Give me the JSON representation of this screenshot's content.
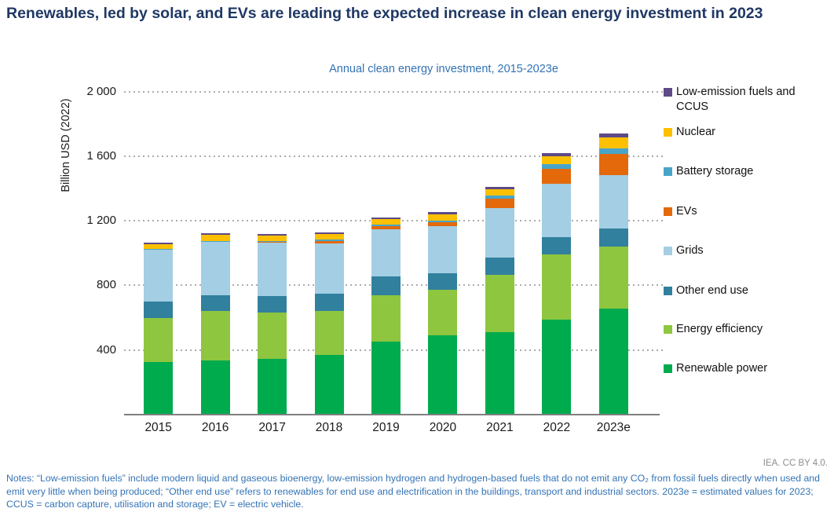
{
  "page": {
    "title": "Renewables, led by solar, and EVs are leading the expected increase in clean energy investment in 2023",
    "credit": "IEA. CC BY 4.0.",
    "notes": "Notes: “Low-emission fuels” include modern liquid and gaseous bioenergy, low-emission hydrogen and hydrogen-based fuels that do not emit any CO₂ from fossil fuels directly when used and emit very little when being produced; “Other end use” refers to renewables for end use and electrification in the buildings, transport and industrial sectors. 2023e = estimated values for 2023; CCUS = carbon capture, utilisation and storage; EV = electric vehicle."
  },
  "chart_data": {
    "type": "bar",
    "stacked": true,
    "title": "Annual clean energy investment, 2015-2023e",
    "xlabel": "",
    "ylabel": "Billion USD (2022)",
    "ylim": [
      0,
      2000
    ],
    "grid": "horizontal dotted",
    "legend_position": "right",
    "legend_order_top_to_bottom": [
      "Low-emission fuels and CCUS",
      "Nuclear",
      "Battery storage",
      "EVs",
      "Grids",
      "Other end use",
      "Energy efficiency",
      "Renewable power"
    ],
    "categories": [
      "2015",
      "2016",
      "2017",
      "2018",
      "2019",
      "2020",
      "2021",
      "2022",
      "2023e"
    ],
    "yticks": [
      {
        "value": 400,
        "label": "400"
      },
      {
        "value": 800,
        "label": "800"
      },
      {
        "value": 1200,
        "label": "1 200"
      },
      {
        "value": 1600,
        "label": "1 600"
      },
      {
        "value": 2000,
        "label": "2 000"
      }
    ],
    "series": [
      {
        "name": "Renewable power",
        "slug": "renewable-power",
        "color": "#00ab4e",
        "values": [
          325,
          335,
          345,
          370,
          450,
          490,
          510,
          590,
          655
        ]
      },
      {
        "name": "Energy efficiency",
        "slug": "energy-efficiency",
        "color": "#8ec63f",
        "values": [
          275,
          305,
          285,
          270,
          290,
          285,
          355,
          400,
          385
        ]
      },
      {
        "name": "Other end use",
        "slug": "other-end-use",
        "color": "#31809e",
        "values": [
          100,
          100,
          105,
          110,
          115,
          100,
          105,
          110,
          110
        ]
      },
      {
        "name": "Grids",
        "slug": "grids",
        "color": "#a4cee4",
        "values": [
          325,
          330,
          330,
          310,
          290,
          290,
          310,
          330,
          335
        ]
      },
      {
        "name": "EVs",
        "slug": "evs",
        "color": "#e3690b",
        "values": [
          2,
          3,
          8,
          15,
          20,
          25,
          55,
          90,
          130
        ]
      },
      {
        "name": "Battery storage",
        "slug": "battery-storage",
        "color": "#48a5c9",
        "values": [
          1,
          2,
          3,
          10,
          10,
          12,
          20,
          30,
          35
        ]
      },
      {
        "name": "Nuclear",
        "slug": "nuclear",
        "color": "#fdc000",
        "values": [
          28,
          40,
          30,
          35,
          35,
          40,
          40,
          50,
          65
        ]
      },
      {
        "name": "Low-emission fuels and CCUS",
        "slug": "low-emission-fuels-and-ccus",
        "color": "#5d4a87",
        "values": [
          8,
          10,
          10,
          10,
          10,
          12,
          13,
          18,
          25
        ]
      }
    ],
    "totals": [
      1064,
      1125,
      1116,
      1130,
      1220,
      1254,
      1408,
      1618,
      1740
    ]
  }
}
